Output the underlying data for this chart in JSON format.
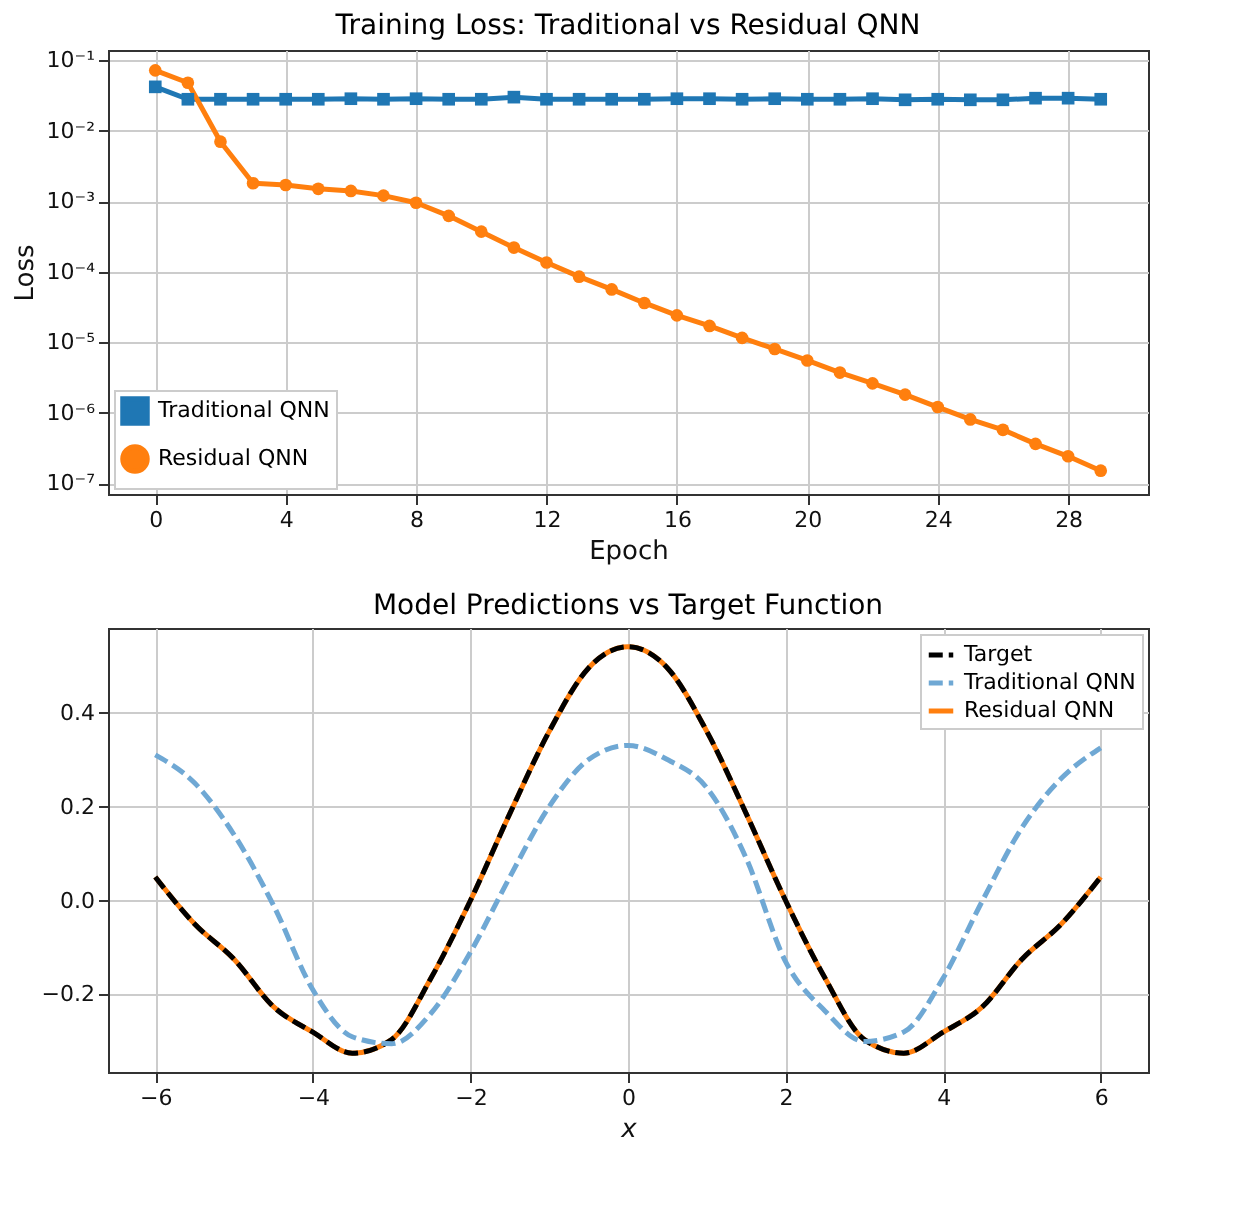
{
  "chart_data": [
    {
      "type": "line",
      "title": "Training Loss: Traditional vs Residual QNN",
      "xlabel": "Epoch",
      "ylabel": "Loss",
      "log": "y",
      "grid": true,
      "legend": "bottom left",
      "x": [
        0,
        1,
        2,
        3,
        4,
        5,
        6,
        7,
        8,
        9,
        10,
        11,
        12,
        13,
        14,
        15,
        16,
        17,
        18,
        19,
        20,
        21,
        22,
        23,
        24,
        25,
        26,
        27,
        28,
        29
      ],
      "xlim": [
        -1.45,
        30.45
      ],
      "xticks": [
        0,
        4,
        8,
        12,
        16,
        20,
        24,
        28
      ],
      "ylim": [
        7e-08,
        0.14
      ],
      "yticks": [
        {
          "value": 1e-07,
          "label": "10⁻⁷"
        },
        {
          "value": 1e-06,
          "label": "10⁻⁶"
        },
        {
          "value": 1e-05,
          "label": "10⁻⁵"
        },
        {
          "value": 0.0001,
          "label": "10⁻⁴"
        },
        {
          "value": 0.001,
          "label": "10⁻³"
        },
        {
          "value": 0.01,
          "label": "10⁻²"
        },
        {
          "value": 0.1,
          "label": "10⁻¹"
        }
      ],
      "series": [
        {
          "name": "Traditional QNN",
          "color": "#1f77b4",
          "marker": "square",
          "values": [
            0.042,
            0.028,
            0.028,
            0.028,
            0.028,
            0.028,
            0.0285,
            0.028,
            0.0285,
            0.028,
            0.028,
            0.03,
            0.028,
            0.028,
            0.028,
            0.028,
            0.0285,
            0.0285,
            0.028,
            0.0285,
            0.028,
            0.028,
            0.0285,
            0.0275,
            0.028,
            0.0275,
            0.0275,
            0.029,
            0.029,
            0.028
          ]
        },
        {
          "name": "Residual QNN",
          "color": "#ff7f0e",
          "marker": "circle",
          "values": [
            0.072,
            0.048,
            0.007,
            0.0018,
            0.0017,
            0.0015,
            0.0014,
            0.0012,
            0.00095,
            0.00062,
            0.00037,
            0.00022,
            0.000135,
            8.5e-05,
            5.6e-05,
            3.6e-05,
            2.4e-05,
            1.7e-05,
            1.15e-05,
            8e-06,
            5.5e-06,
            3.7e-06,
            2.6e-06,
            1.8e-06,
            1.2e-06,
            8e-07,
            5.7e-07,
            3.6e-07,
            2.4e-07,
            1.5e-07
          ]
        }
      ]
    },
    {
      "type": "line",
      "title": "Model Predictions vs Target Function",
      "xlabel": "x",
      "grid": true,
      "legend": "top right",
      "marker": "none",
      "x": [
        -6,
        -5.5,
        -5,
        -4.5,
        -4,
        -3.5,
        -3,
        -2.5,
        -2,
        -1.5,
        -1,
        -0.5,
        0,
        0.5,
        1,
        1.5,
        2,
        2.5,
        3,
        3.5,
        4,
        4.5,
        5,
        5.5,
        6
      ],
      "xlim": [
        -6.6,
        6.6
      ],
      "xticks": [
        {
          "value": -6,
          "label": "−6"
        },
        {
          "value": -4,
          "label": "−4"
        },
        {
          "value": -2,
          "label": "−2"
        },
        0,
        2,
        4,
        6
      ],
      "ylim": [
        -0.365,
        0.58
      ],
      "yticks": [
        {
          "value": -0.2,
          "label": "−0.2"
        },
        {
          "value": 0,
          "label": "0.0"
        },
        0.2,
        0.4
      ],
      "series": [
        {
          "name": "Target",
          "color": "#000000",
          "line_style": "dashed",
          "values": [
            0.05,
            -0.05,
            -0.125,
            -0.226,
            -0.28,
            -0.325,
            -0.296,
            -0.165,
            0.0,
            0.185,
            0.36,
            0.495,
            0.54,
            0.495,
            0.36,
            0.185,
            0.0,
            -0.165,
            -0.296,
            -0.325,
            -0.28,
            -0.226,
            -0.125,
            -0.05,
            0.05
          ]
        },
        {
          "name": "Traditional QNN",
          "color": "#6fa8d4",
          "line_style": "dashed",
          "values": [
            0.31,
            0.25,
            0.14,
            -0.01,
            -0.19,
            -0.29,
            -0.305,
            -0.24,
            -0.11,
            0.05,
            0.2,
            0.3,
            0.33,
            0.3,
            0.24,
            0.09,
            -0.13,
            -0.235,
            -0.3,
            -0.28,
            -0.165,
            0.0,
            0.155,
            0.26,
            0.325
          ]
        },
        {
          "name": "Residual QNN",
          "color": "#ff7f0e",
          "line_style": "solid",
          "values": [
            0.05,
            -0.05,
            -0.125,
            -0.226,
            -0.28,
            -0.325,
            -0.296,
            -0.165,
            0.0,
            0.185,
            0.36,
            0.495,
            0.54,
            0.495,
            0.36,
            0.185,
            0.0,
            -0.165,
            -0.296,
            -0.325,
            -0.28,
            -0.226,
            -0.125,
            -0.05,
            0.05
          ]
        }
      ]
    }
  ]
}
